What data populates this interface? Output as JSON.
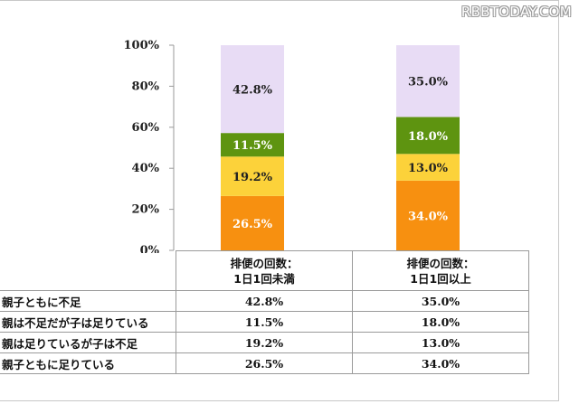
{
  "watermark": "RBBTODAY.COM",
  "chart_data": {
    "type": "bar",
    "stacked": true,
    "ylim": [
      0,
      100
    ],
    "yticks": [
      "0%",
      "20%",
      "40%",
      "60%",
      "80%",
      "100%"
    ],
    "categories": [
      [
        "排便の回数：",
        "1日1回未満"
      ],
      [
        "排便の回数：",
        "1日1回以上"
      ]
    ],
    "series": [
      {
        "name": "親子ともに足りている",
        "values": [
          26.5,
          34.0
        ],
        "labels": [
          "26.5%",
          "34.0%"
        ],
        "color": "#f79010",
        "label_color": "#ffffff"
      },
      {
        "name": "親は足りているが子は不足",
        "values": [
          19.2,
          13.0
        ],
        "labels": [
          "19.2%",
          "13.0%"
        ],
        "color": "#fcd23a",
        "label_color": "#222222"
      },
      {
        "name": "親は不足だが子は足りている",
        "values": [
          11.5,
          18.0
        ],
        "labels": [
          "11.5%",
          "18.0%"
        ],
        "color": "#5e9410",
        "label_color": "#ffffff"
      },
      {
        "name": "親子ともに不足",
        "values": [
          42.8,
          35.0
        ],
        "labels": [
          "42.8%",
          "35.0%"
        ],
        "color": "#e8dcf5",
        "label_color": "#222222"
      }
    ]
  },
  "table": {
    "rows": [
      {
        "label": "親子ともに不足",
        "values": [
          "42.8%",
          "35.0%"
        ]
      },
      {
        "label": "親は不足だが子は足りている",
        "values": [
          "11.5%",
          "18.0%"
        ]
      },
      {
        "label": "親は足りているが子は不足",
        "values": [
          "19.2%",
          "13.0%"
        ]
      },
      {
        "label": "親子ともに足りている",
        "values": [
          "26.5%",
          "34.0%"
        ]
      }
    ]
  }
}
